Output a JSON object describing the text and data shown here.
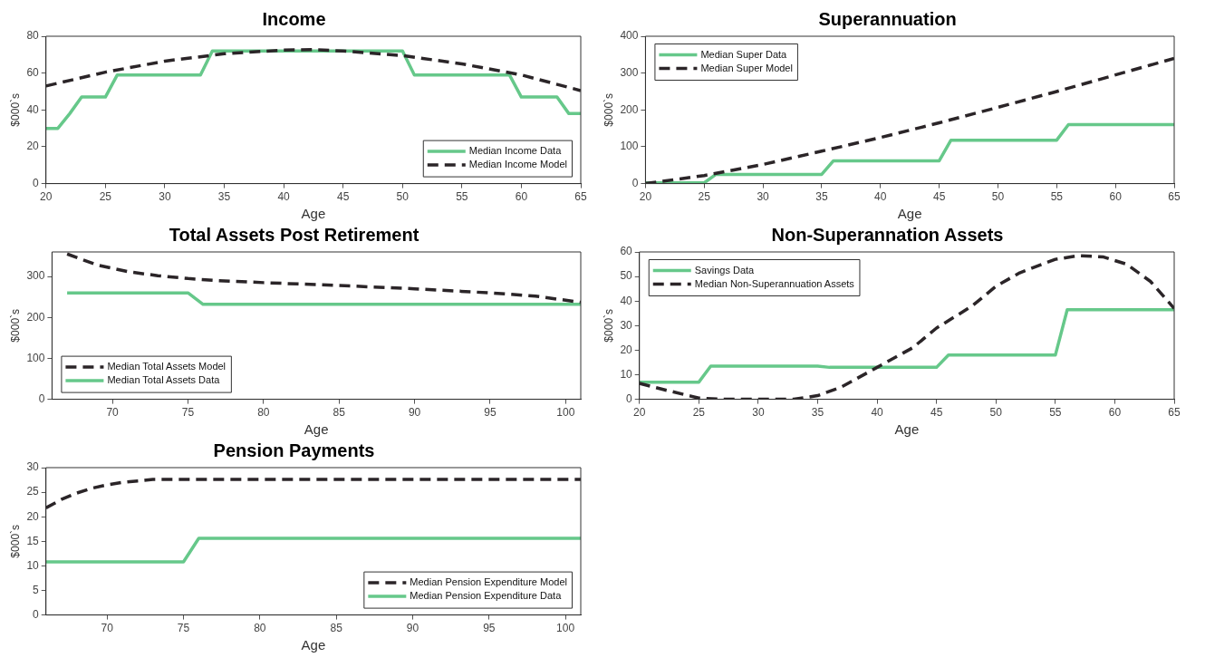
{
  "chart_data": [
    {
      "type": "line",
      "title": "Income",
      "xlabel": "Age",
      "ylabel": "$000`s",
      "xlim": [
        20,
        65
      ],
      "xticks": [
        20,
        25,
        30,
        35,
        40,
        45,
        50,
        55,
        60,
        65
      ],
      "ylim": [
        0,
        80
      ],
      "yticks": [
        0,
        20,
        40,
        60,
        80
      ],
      "grid": false,
      "legend": "bottom right",
      "series": [
        {
          "name": "Median Income Data",
          "color": "#66c88a",
          "line_style": "solid",
          "x": [
            20,
            21,
            22,
            23,
            25,
            26,
            33,
            34,
            50,
            51,
            59,
            60,
            63,
            64,
            65
          ],
          "values": [
            30,
            30,
            38,
            47,
            47,
            59,
            59,
            72,
            72,
            59,
            59,
            47,
            47,
            38,
            38
          ]
        },
        {
          "name": "Median Income Model",
          "color": "#2b2528",
          "line_style": "dashed",
          "x": [
            20,
            25,
            30,
            35,
            40,
            42.5,
            45,
            50,
            55,
            60,
            65
          ],
          "values": [
            53,
            60.5,
            66.5,
            70.5,
            72.5,
            72.7,
            72,
            69.5,
            65,
            59,
            50.5
          ]
        }
      ]
    },
    {
      "type": "line",
      "title": "Superannuation",
      "xlabel": "Age",
      "ylabel": "$000`s",
      "xlim": [
        20,
        65
      ],
      "xticks": [
        20,
        25,
        30,
        35,
        40,
        45,
        50,
        55,
        60,
        65
      ],
      "ylim": [
        0,
        400
      ],
      "yticks": [
        0,
        100,
        200,
        300,
        400
      ],
      "grid": false,
      "legend": "top left",
      "series": [
        {
          "name": "Median Super Data",
          "color": "#66c88a",
          "line_style": "solid",
          "x": [
            20,
            25,
            26,
            35,
            36,
            45,
            46,
            55,
            56,
            65
          ],
          "values": [
            2,
            2,
            25,
            25,
            62,
            62,
            118,
            118,
            160,
            160
          ]
        },
        {
          "name": "Median Super Model",
          "color": "#2b2528",
          "line_style": "dashed",
          "x": [
            20,
            25,
            30,
            35,
            40,
            45,
            50,
            55,
            60,
            65
          ],
          "values": [
            0,
            22,
            52,
            88,
            125,
            165,
            207,
            250,
            295,
            340
          ]
        }
      ]
    },
    {
      "type": "line",
      "title": "Total Assets Post Retirement",
      "xlabel": "Age",
      "ylabel": "$000`s",
      "xlim": [
        66,
        101
      ],
      "xticks": [
        70,
        75,
        80,
        85,
        90,
        95,
        100
      ],
      "ylim": [
        0,
        360
      ],
      "yticks": [
        0,
        100,
        200,
        300
      ],
      "grid": false,
      "legend": "bottom left",
      "series": [
        {
          "name": "Median Total Assets Model",
          "color": "#2b2528",
          "line_style": "dashed",
          "x": [
            67,
            69,
            71,
            73,
            75,
            77,
            80,
            85,
            90,
            95,
            98,
            101
          ],
          "values": [
            355,
            328,
            312,
            302,
            295,
            290,
            285,
            278,
            270,
            260,
            252,
            237
          ]
        },
        {
          "name": "Median Total Assets Data",
          "color": "#66c88a",
          "line_style": "solid",
          "x": [
            67,
            75,
            76,
            101
          ],
          "values": [
            260,
            260,
            232,
            232
          ]
        }
      ]
    },
    {
      "type": "line",
      "title": "Non-Superannation Assets",
      "xlabel": "Age",
      "ylabel": "$000`s",
      "xlim": [
        20,
        65
      ],
      "xticks": [
        20,
        25,
        30,
        35,
        40,
        45,
        50,
        55,
        60,
        65
      ],
      "ylim": [
        0,
        60
      ],
      "yticks": [
        0,
        10,
        20,
        30,
        40,
        50,
        60
      ],
      "grid": false,
      "legend": "top left",
      "series": [
        {
          "name": "Savings Data",
          "color": "#66c88a",
          "line_style": "solid",
          "x": [
            20,
            25,
            26,
            35,
            36,
            45,
            46,
            55,
            56,
            65
          ],
          "values": [
            7,
            7,
            13.5,
            13.5,
            13,
            13,
            18,
            18,
            36.5,
            36.5
          ]
        },
        {
          "name": "Median Non-Superannuation Assets",
          "color": "#2b2528",
          "line_style": "dashed",
          "x": [
            20,
            22,
            25,
            27,
            30,
            33,
            35,
            37,
            40,
            43,
            45,
            48,
            50,
            52,
            55,
            57,
            59,
            61,
            63,
            65
          ],
          "values": [
            6.5,
            4,
            0.5,
            0,
            0,
            0,
            1.5,
            5,
            13,
            21,
            29,
            38,
            46,
            51.5,
            57,
            58.5,
            58,
            55,
            48,
            37
          ]
        }
      ]
    },
    {
      "type": "line",
      "title": "Pension Payments",
      "xlabel": "Age",
      "ylabel": "$000`s",
      "xlim": [
        66,
        101
      ],
      "xticks": [
        70,
        75,
        80,
        85,
        90,
        95,
        100
      ],
      "ylim": [
        0,
        30
      ],
      "yticks": [
        0,
        5,
        10,
        15,
        20,
        25,
        30
      ],
      "grid": false,
      "legend": "bottom right",
      "series": [
        {
          "name": "Median Pension Expenditure Model",
          "color": "#2b2528",
          "line_style": "dashed",
          "x": [
            66,
            67,
            68,
            69,
            70,
            71,
            72,
            73,
            101
          ],
          "values": [
            21.8,
            23.5,
            24.8,
            25.8,
            26.5,
            27,
            27.3,
            27.6,
            27.6
          ]
        },
        {
          "name": "Median Pension Expenditure Data",
          "color": "#66c88a",
          "line_style": "solid",
          "x": [
            66,
            75,
            76,
            101
          ],
          "values": [
            10.8,
            10.8,
            15.6,
            15.6
          ]
        }
      ]
    }
  ]
}
